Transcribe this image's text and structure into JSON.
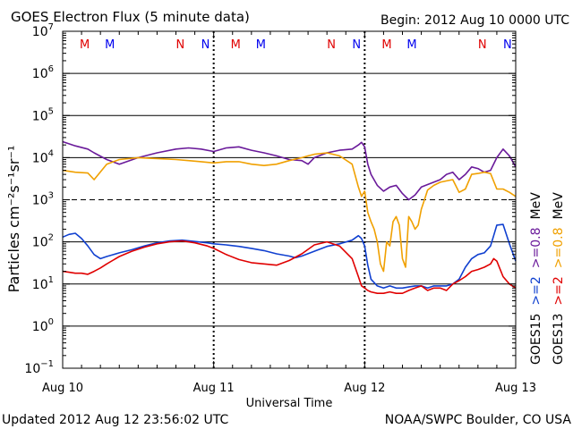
{
  "header": {
    "title": "GOES Electron Flux (5 minute data)",
    "begin": "Begin: 2012 Aug 10 0000 UTC"
  },
  "footer": {
    "updated": "Updated 2012 Aug 12 23:56:02 UTC",
    "credit": "NOAA/SWPC Boulder, CO USA"
  },
  "chart_data": {
    "type": "line",
    "title": "GOES Electron Flux (5 minute data)",
    "xlabel": "Universal Time",
    "ylabel": "Particles cm⁻²s⁻¹sr⁻¹",
    "y_scale": "log",
    "ylim_exp": [
      -1,
      7
    ],
    "y_tick_exponents": [
      -1,
      0,
      1,
      2,
      3,
      4,
      5,
      6,
      7
    ],
    "x_domain_hours": [
      0,
      72
    ],
    "x_tick_labels": [
      {
        "hour": 0,
        "label": "Aug 10"
      },
      {
        "hour": 24,
        "label": "Aug 11"
      },
      {
        "hour": 48,
        "label": "Aug 12"
      },
      {
        "hour": 72,
        "label": "Aug 13"
      }
    ],
    "reference_lines_exp": [
      0,
      1,
      2,
      3,
      4,
      5,
      6
    ],
    "dashed_reference_exp": 3,
    "day_divider_hours": [
      24,
      48
    ],
    "markers": [
      {
        "label": "M",
        "hour": 3.5,
        "color": "#e00000"
      },
      {
        "hour": 7.5,
        "label": "M",
        "color": "#0000ee"
      },
      {
        "hour": 18.7,
        "label": "N",
        "color": "#e00000"
      },
      {
        "hour": 22.7,
        "label": "N",
        "color": "#0000ee"
      },
      {
        "hour": 27.5,
        "label": "M",
        "color": "#e00000"
      },
      {
        "hour": 31.5,
        "label": "M",
        "color": "#0000ee"
      },
      {
        "hour": 42.7,
        "label": "N",
        "color": "#e00000"
      },
      {
        "hour": 46.7,
        "label": "N",
        "color": "#0000ee"
      },
      {
        "hour": 51.5,
        "label": "M",
        "color": "#e00000"
      },
      {
        "hour": 55.5,
        "label": "M",
        "color": "#0000ee"
      },
      {
        "hour": 66.7,
        "label": "N",
        "color": "#e00000"
      },
      {
        "hour": 70.7,
        "label": "N",
        "color": "#0000ee"
      }
    ],
    "legend": {
      "placement": "right",
      "columns": [
        {
          "satellite": "GOES15",
          "entries": [
            {
              "text": ">=2",
              "color": "#1040d0"
            },
            {
              "text": ">=0.8",
              "color": "#6a1a9a"
            },
            {
              "text": "MeV",
              "color": "#000000"
            }
          ]
        },
        {
          "satellite": "GOES13",
          "entries": [
            {
              "text": ">=2",
              "color": "#e00000"
            },
            {
              "text": ">=0.8",
              "color": "#f0a000"
            },
            {
              "text": "MeV",
              "color": "#000000"
            }
          ]
        }
      ]
    },
    "series": [
      {
        "satellite": "GOES15",
        "energy": ">=0.8 MeV",
        "color": "#6a1a9a",
        "x": [
          0,
          2,
          4,
          5,
          7,
          9,
          12,
          15,
          18,
          20,
          22,
          24,
          26,
          28,
          30,
          32,
          34,
          36,
          38,
          39,
          40,
          42,
          44,
          46,
          47,
          47.5,
          48,
          48.5,
          49,
          50,
          51,
          52,
          53,
          54,
          55,
          56,
          57,
          58,
          60,
          61,
          62,
          63,
          64,
          65,
          66,
          67,
          68,
          69,
          70,
          71,
          72
        ],
        "y": [
          24000,
          19000,
          16000,
          13000,
          9000,
          7000,
          10000,
          13000,
          16000,
          17000,
          16000,
          14000,
          17000,
          18000,
          15000,
          13000,
          11000,
          9000,
          8500,
          7000,
          10000,
          13000,
          15000,
          16000,
          20000,
          23000,
          18000,
          7000,
          4000,
          2200,
          1600,
          2000,
          2200,
          1400,
          1000,
          1300,
          2000,
          2300,
          3000,
          4000,
          4500,
          3000,
          4000,
          6000,
          5500,
          4500,
          5000,
          10000,
          16000,
          11000,
          6000
        ]
      },
      {
        "satellite": "GOES13",
        "energy": ">=0.8 MeV",
        "color": "#f0a000",
        "x": [
          0,
          2,
          4,
          5,
          7,
          9,
          12,
          15,
          18,
          20,
          22,
          24,
          26,
          28,
          30,
          32,
          34,
          36,
          38,
          39,
          40,
          42,
          44,
          46,
          47,
          47.5,
          48,
          48.5,
          49,
          49.5,
          50,
          50.5,
          51,
          51.5,
          52,
          52.5,
          53,
          53.5,
          54,
          54.5,
          55,
          55.5,
          56,
          56.5,
          57,
          57.5,
          58,
          59,
          60,
          61,
          62,
          63,
          64,
          65,
          66,
          67,
          68,
          69,
          70,
          71,
          72
        ],
        "y": [
          5000,
          4500,
          4300,
          3000,
          7000,
          9000,
          10000,
          9500,
          9000,
          8500,
          8000,
          7500,
          8000,
          8000,
          7000,
          6500,
          7000,
          8500,
          10000,
          11000,
          12000,
          13000,
          11000,
          7000,
          2000,
          1200,
          1600,
          500,
          300,
          200,
          100,
          30,
          20,
          100,
          80,
          300,
          400,
          250,
          40,
          25,
          400,
          300,
          200,
          250,
          600,
          1000,
          1700,
          2200,
          2600,
          2800,
          3000,
          1500,
          1800,
          4000,
          4200,
          4500,
          4200,
          1800,
          1800,
          1500,
          1200
        ]
      },
      {
        "satellite": "GOES15",
        "energy": ">=2 MeV",
        "color": "#1040d0",
        "x": [
          0,
          1,
          2,
          3,
          4,
          5,
          6,
          7,
          9,
          11,
          13,
          15,
          17,
          19,
          21,
          23,
          24,
          26,
          28,
          30,
          32,
          34,
          36,
          37,
          38,
          40,
          42,
          44,
          46,
          47,
          47.5,
          48,
          48.5,
          49,
          50,
          51,
          52,
          53,
          54,
          55,
          56,
          57,
          58,
          59,
          60,
          61,
          62,
          63,
          64,
          65,
          66,
          67,
          68,
          68.5,
          69,
          70,
          71,
          72
        ],
        "y": [
          130,
          150,
          160,
          120,
          80,
          50,
          40,
          45,
          55,
          65,
          80,
          95,
          105,
          110,
          102,
          95,
          90,
          85,
          78,
          70,
          62,
          52,
          46,
          42,
          46,
          60,
          78,
          90,
          110,
          140,
          120,
          80,
          28,
          13,
          9,
          8,
          9,
          8,
          8,
          8.5,
          9,
          9,
          8,
          9,
          9,
          9,
          10,
          13,
          25,
          40,
          50,
          55,
          80,
          140,
          250,
          260,
          90,
          35
        ]
      },
      {
        "satellite": "GOES13",
        "energy": ">=2 MeV",
        "color": "#e00000",
        "x": [
          0,
          1,
          2,
          3,
          4,
          5,
          6,
          7,
          9,
          11,
          13,
          15,
          17,
          19,
          21,
          23,
          24,
          26,
          28,
          30,
          32,
          34,
          36,
          38,
          40,
          42,
          44,
          46,
          47,
          47.5,
          48,
          48.5,
          49,
          50,
          51,
          52,
          53,
          54,
          55,
          56,
          57,
          58,
          59,
          60,
          61,
          62,
          63,
          64,
          65,
          66,
          67,
          68,
          68.5,
          69,
          70,
          71,
          72
        ],
        "y": [
          20,
          19,
          18,
          18,
          17,
          20,
          24,
          30,
          45,
          60,
          75,
          90,
          100,
          105,
          95,
          80,
          70,
          50,
          38,
          32,
          30,
          28,
          36,
          52,
          85,
          100,
          80,
          40,
          15,
          9,
          8,
          7,
          6.5,
          6,
          6,
          6.5,
          6,
          6,
          7,
          8,
          9,
          7,
          8,
          8,
          7,
          10,
          12,
          15,
          20,
          22,
          25,
          30,
          40,
          35,
          15,
          10,
          8
        ]
      }
    ]
  }
}
